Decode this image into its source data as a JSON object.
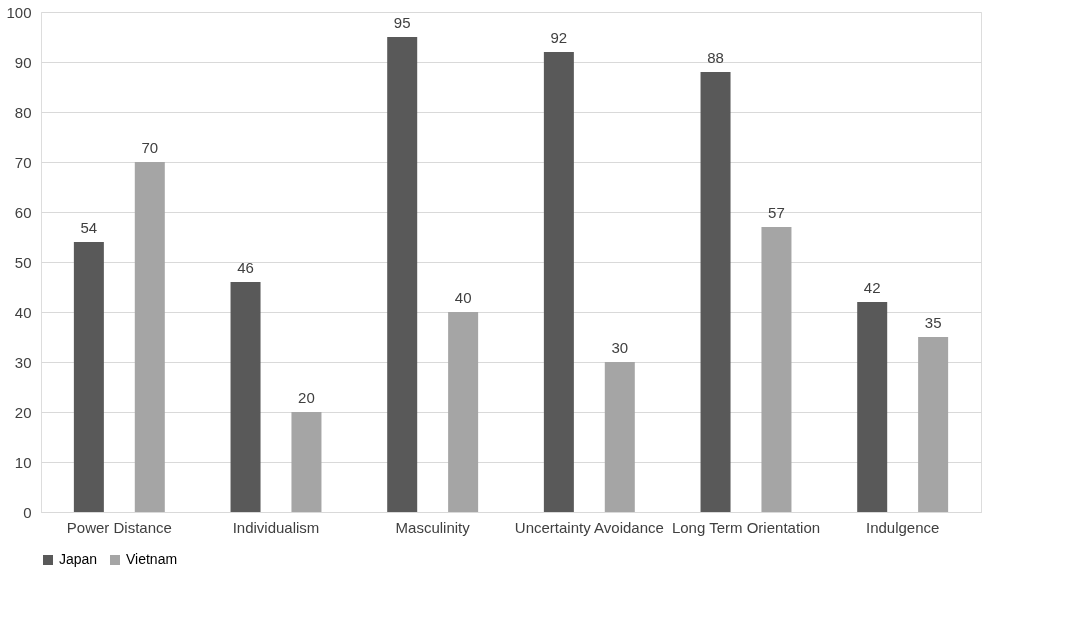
{
  "chart_data": {
    "type": "bar",
    "categories": [
      "Power Distance",
      "Individualism",
      "Masculinity",
      "Uncertainty Avoidance",
      "Long Term Orientation",
      "Indulgence"
    ],
    "series": [
      {
        "name": "Japan",
        "color": "#595959",
        "values": [
          54,
          46,
          95,
          92,
          88,
          42
        ]
      },
      {
        "name": "Vietnam",
        "color": "#a5a5a5",
        "values": [
          70,
          20,
          40,
          30,
          57,
          35
        ]
      }
    ],
    "ylim": [
      0,
      100
    ],
    "yticks": [
      0,
      10,
      20,
      30,
      40,
      50,
      60,
      70,
      80,
      90,
      100
    ],
    "grid": "y",
    "legend": "bottom",
    "data_labels": true
  }
}
